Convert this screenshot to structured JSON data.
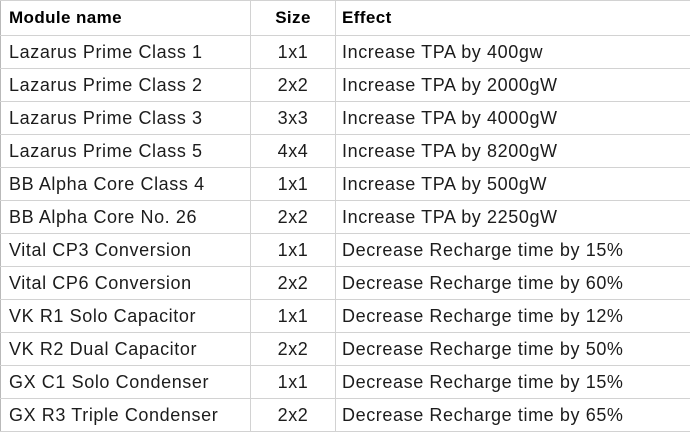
{
  "table": {
    "headers": {
      "module": "Module name",
      "size": "Size",
      "effect": "Effect"
    },
    "rows": [
      {
        "module": "Lazarus Prime Class 1",
        "size": "1x1",
        "effect": "Increase TPA by 400gw"
      },
      {
        "module": "Lazarus Prime Class 2",
        "size": "2x2",
        "effect": "Increase TPA by 2000gW"
      },
      {
        "module": "Lazarus Prime Class 3",
        "size": "3x3",
        "effect": "Increase TPA by 4000gW"
      },
      {
        "module": "Lazarus Prime Class 5",
        "size": "4x4",
        "effect": "Increase TPA by 8200gW"
      },
      {
        "module": "BB Alpha Core Class 4",
        "size": "1x1",
        "effect": "Increase TPA by 500gW"
      },
      {
        "module": "BB Alpha Core No. 26",
        "size": "2x2",
        "effect": "Increase TPA by 2250gW"
      },
      {
        "module": "Vital CP3 Conversion",
        "size": "1x1",
        "effect": "Decrease Recharge time by 15%"
      },
      {
        "module": "Vital CP6 Conversion",
        "size": "2x2",
        "effect": "Decrease Recharge time by 60%"
      },
      {
        "module": "VK R1 Solo Capacitor",
        "size": "1x1",
        "effect": "Decrease Recharge time by 12%"
      },
      {
        "module": "VK R2 Dual Capacitor",
        "size": "2x2",
        "effect": "Decrease Recharge time by 50%"
      },
      {
        "module": "GX C1 Solo Condenser",
        "size": "1x1",
        "effect": "Decrease Recharge time by 15%"
      },
      {
        "module": "GX R3 Triple Condenser",
        "size": "2x2",
        "effect": "Decrease Recharge time by 65%"
      }
    ]
  },
  "colors": {
    "text": "#1c1c1c",
    "header_text": "#000000",
    "border": "#d2d2d2",
    "background": "#ffffff"
  }
}
